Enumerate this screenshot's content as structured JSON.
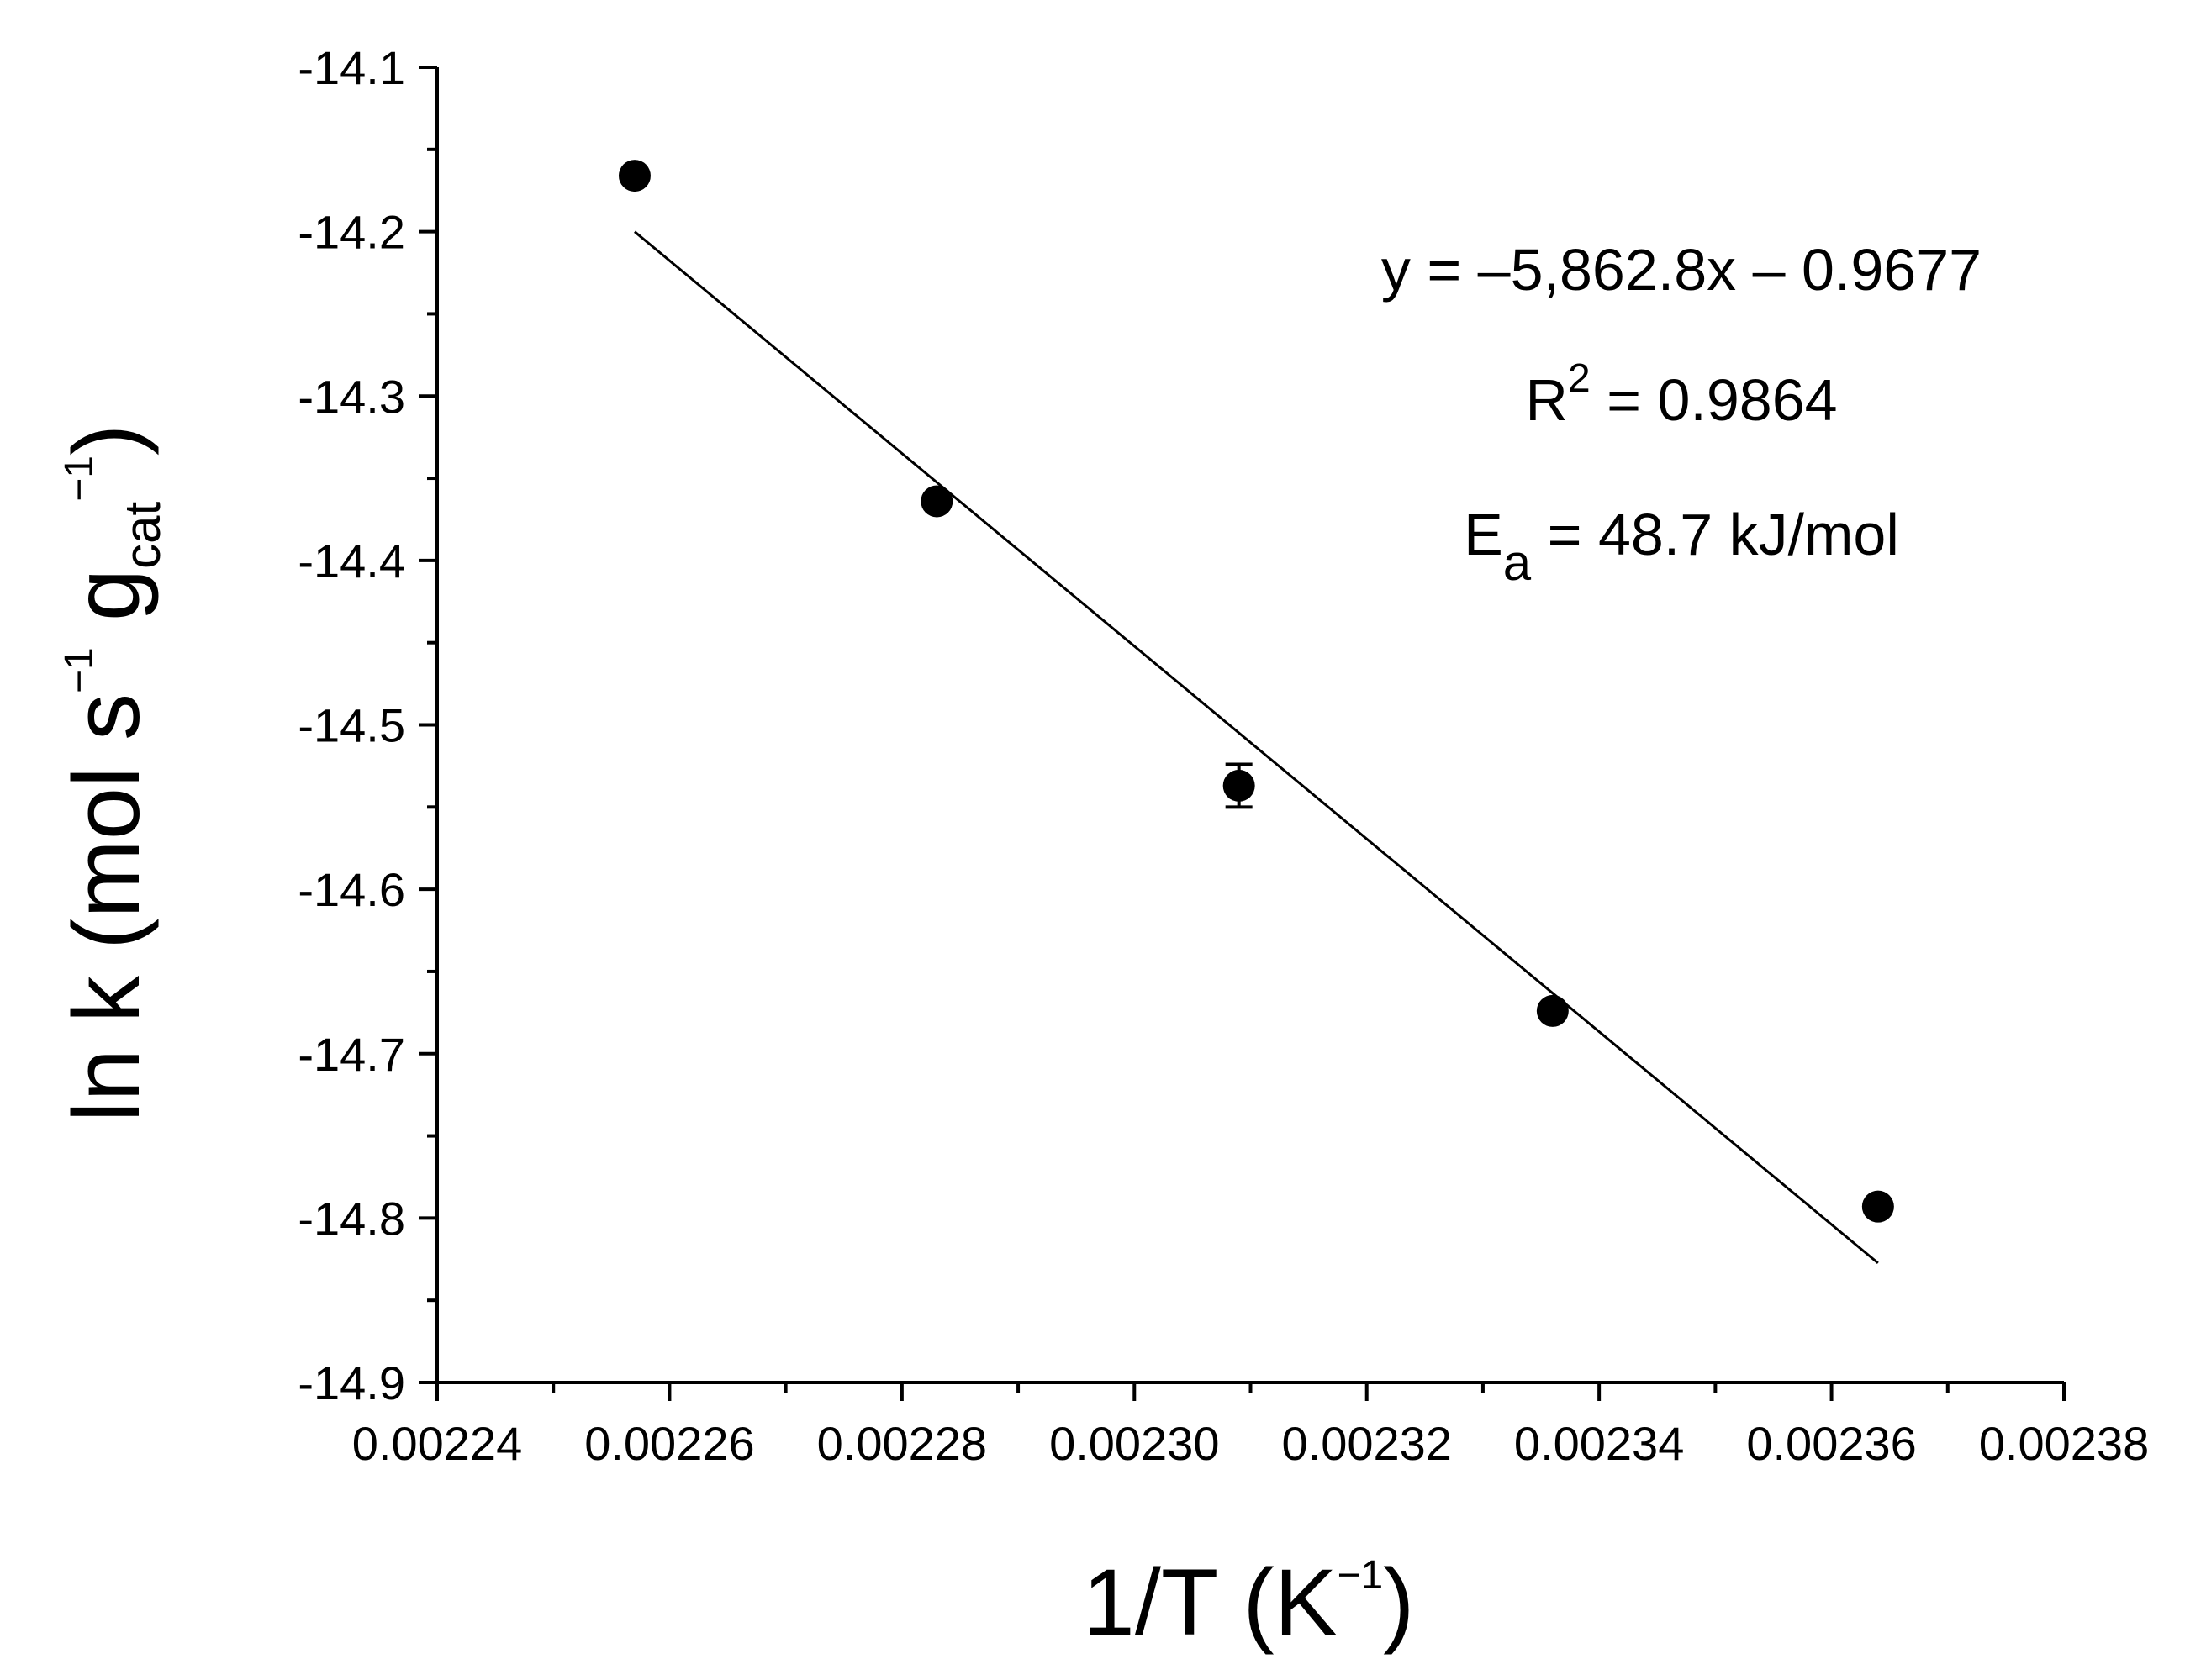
{
  "chart_data": {
    "type": "scatter",
    "xlabel": {
      "base": "1/T (K",
      "sup": "−1",
      "close": ")"
    },
    "ylabel": {
      "prefix": "ln k (mol s",
      "sup1": "−1",
      "mid": " g",
      "sub": "cat",
      "sup2": "−1",
      "close": ")"
    },
    "xlim": [
      0.00224,
      0.00238
    ],
    "ylim": [
      -14.9,
      -14.1
    ],
    "xticks": [
      "0.00224",
      "0.00226",
      "0.00228",
      "0.00230",
      "0.00232",
      "0.00234",
      "0.00236",
      "0.00238"
    ],
    "yticks": [
      "-14.1",
      "-14.2",
      "-14.3",
      "-14.4",
      "-14.5",
      "-14.6",
      "-14.7",
      "-14.8",
      "-14.9"
    ],
    "points": [
      {
        "x": 0.002257,
        "y": -14.166,
        "err": 0
      },
      {
        "x": 0.002283,
        "y": -14.364,
        "err": 0
      },
      {
        "x": 0.002309,
        "y": -14.537,
        "err": 0.013
      },
      {
        "x": 0.002336,
        "y": -14.674,
        "err": 0
      },
      {
        "x": 0.002364,
        "y": -14.793,
        "err": 0
      }
    ],
    "fit": {
      "slope": -5862.8,
      "intercept": -0.9677,
      "x_range": [
        0.002257,
        0.002364
      ]
    },
    "annotations": {
      "equation": "y = –5,862.8x – 0.9677",
      "r2_prefix": "R",
      "r2_sup": "2",
      "r2_value": " = 0.9864",
      "ea_prefix": "E",
      "ea_sub": "a",
      "ea_value": " = 48.7 kJ/mol"
    },
    "colors": {
      "points": "#000000",
      "line": "#000000",
      "axis": "#000000"
    },
    "grid": false,
    "legend": "none"
  }
}
